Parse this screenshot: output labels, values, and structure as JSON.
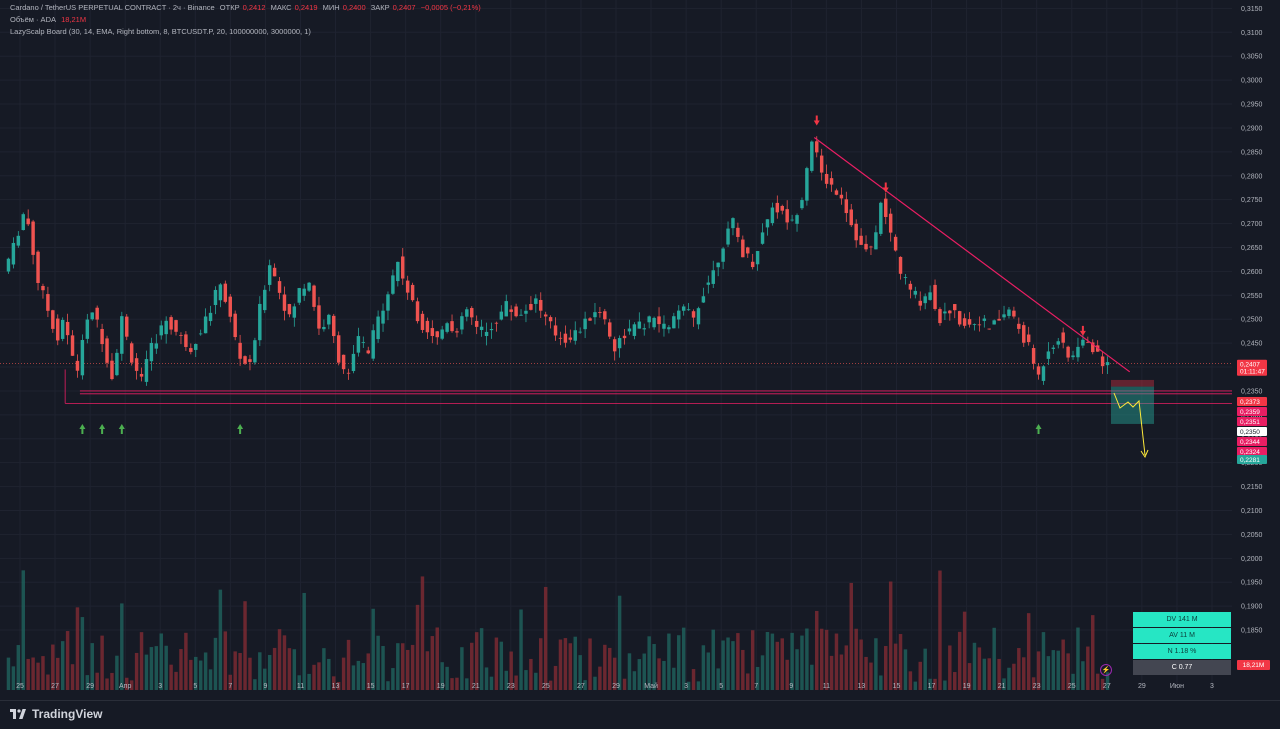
{
  "legend": {
    "line1": {
      "symbol": "Cardano / TetherUS PERPETUAL CONTRACT · 2ч · Binance",
      "open_label": "ОТКР",
      "open_value": "0,2412",
      "high_label": "МАКС",
      "high_value": "0,2419",
      "low_label": "МИН",
      "low_value": "0,2400",
      "close_label": "ЗАКР",
      "close_value": "0,2407",
      "change": "−0,0005 (−0,21%)"
    },
    "line2": {
      "label": "Объём · ADA",
      "value": "18,21M"
    },
    "line3": {
      "label": "LazyScalp Board (30, 14, EMA, Right bottom, 8, BTCUSDT.P, 20, 100000000, 3000000, 1)"
    }
  },
  "price_tags": {
    "current_price": "0,2407",
    "countdown": "01:11:47",
    "levels": [
      {
        "value": "0,2373",
        "color": "#f23645"
      },
      {
        "value": "0,2359",
        "color": "#e91e63"
      },
      {
        "value": "0,2351",
        "color": "#e91e63"
      },
      {
        "value": "0,2350",
        "color": "#ffffff"
      },
      {
        "value": "0,2344",
        "color": "#e91e63"
      },
      {
        "value": "0,2324",
        "color": "#e91e63"
      },
      {
        "value": "0,2281",
        "color": "#26a69a"
      }
    ]
  },
  "stats": {
    "dv": "DV 141 M",
    "av": "AV 11 M",
    "n": "N 1.18 %",
    "c": "C  0.77"
  },
  "volume_badge": "18,21M",
  "footer": {
    "brand": "TradingView"
  },
  "colors": {
    "up": "#26a69a",
    "down": "#ef5350",
    "trend": "#e91e63",
    "support": "#e91e63",
    "accent_green": "#4caf50",
    "accent_red": "#f23645"
  },
  "chart_data": {
    "type": "candlestick",
    "title": "Cardano / TetherUS PERPETUAL CONTRACT · 2ч · Binance",
    "y_ticks": [
      "0,3150",
      "0,3100",
      "0,3050",
      "0,3000",
      "0,2950",
      "0,2900",
      "0,2850",
      "0,2800",
      "0,2750",
      "0,2700",
      "0,2650",
      "0,2600",
      "0,2550",
      "0,2500",
      "0,2450",
      "0,2400",
      "0,2350",
      "0,2300",
      "0,2250",
      "0,2200",
      "0,2150",
      "0,2100",
      "0,2050",
      "0,2000",
      "0,1950",
      "0,1900",
      "0,1850"
    ],
    "x_ticks": [
      "25",
      "27",
      "29",
      "Апр",
      "3",
      "5",
      "7",
      "9",
      "11",
      "13",
      "15",
      "17",
      "19",
      "21",
      "23",
      "25",
      "27",
      "29",
      "Май",
      "3",
      "5",
      "7",
      "9",
      "11",
      "13",
      "15",
      "17",
      "19",
      "21",
      "23",
      "25",
      "27",
      "29",
      "Июн",
      "3"
    ],
    "ylim": [
      0.1825,
      0.3155
    ],
    "price_path": [
      [
        0,
        0.26
      ],
      [
        2,
        0.265
      ],
      [
        4,
        0.272
      ],
      [
        5,
        0.27
      ],
      [
        7,
        0.258
      ],
      [
        9,
        0.252
      ],
      [
        11,
        0.246
      ],
      [
        12,
        0.25
      ],
      [
        14,
        0.242
      ],
      [
        15,
        0.2395
      ],
      [
        16,
        0.246
      ],
      [
        18,
        0.252
      ],
      [
        20,
        0.246
      ],
      [
        22,
        0.238
      ],
      [
        24,
        0.25
      ],
      [
        26,
        0.242
      ],
      [
        28,
        0.237
      ],
      [
        30,
        0.244
      ],
      [
        33,
        0.25
      ],
      [
        36,
        0.246
      ],
      [
        38,
        0.244
      ],
      [
        40,
        0.248
      ],
      [
        42,
        0.252
      ],
      [
        44,
        0.258
      ],
      [
        46,
        0.25
      ],
      [
        48,
        0.242
      ],
      [
        50,
        0.24
      ],
      [
        52,
        0.252
      ],
      [
        54,
        0.262
      ],
      [
        56,
        0.256
      ],
      [
        58,
        0.25
      ],
      [
        60,
        0.256
      ],
      [
        62,
        0.258
      ],
      [
        64,
        0.248
      ],
      [
        66,
        0.25
      ],
      [
        68,
        0.242
      ],
      [
        70,
        0.238
      ],
      [
        72,
        0.246
      ],
      [
        74,
        0.243
      ],
      [
        76,
        0.25
      ],
      [
        78,
        0.256
      ],
      [
        80,
        0.262
      ],
      [
        82,
        0.256
      ],
      [
        84,
        0.25
      ],
      [
        86,
        0.248
      ],
      [
        88,
        0.246
      ],
      [
        90,
        0.25
      ],
      [
        92,
        0.247
      ],
      [
        94,
        0.252
      ],
      [
        96,
        0.248
      ],
      [
        98,
        0.247
      ],
      [
        100,
        0.25
      ],
      [
        102,
        0.253
      ],
      [
        104,
        0.251
      ],
      [
        106,
        0.252
      ],
      [
        108,
        0.254
      ],
      [
        110,
        0.25
      ],
      [
        112,
        0.247
      ],
      [
        114,
        0.246
      ],
      [
        116,
        0.247
      ],
      [
        118,
        0.249
      ],
      [
        120,
        0.252
      ],
      [
        122,
        0.25
      ],
      [
        124,
        0.244
      ],
      [
        126,
        0.247
      ],
      [
        128,
        0.248
      ],
      [
        130,
        0.249
      ],
      [
        132,
        0.25
      ],
      [
        134,
        0.248
      ],
      [
        136,
        0.25
      ],
      [
        138,
        0.252
      ],
      [
        140,
        0.25
      ],
      [
        142,
        0.256
      ],
      [
        144,
        0.26
      ],
      [
        146,
        0.266
      ],
      [
        148,
        0.27
      ],
      [
        150,
        0.264
      ],
      [
        152,
        0.262
      ],
      [
        154,
        0.268
      ],
      [
        156,
        0.274
      ],
      [
        158,
        0.272
      ],
      [
        160,
        0.27
      ],
      [
        162,
        0.276
      ],
      [
        164,
        0.288
      ],
      [
        166,
        0.28
      ],
      [
        168,
        0.278
      ],
      [
        170,
        0.276
      ],
      [
        172,
        0.27
      ],
      [
        174,
        0.265
      ],
      [
        176,
        0.264
      ],
      [
        178,
        0.274
      ],
      [
        180,
        0.268
      ],
      [
        182,
        0.26
      ],
      [
        184,
        0.256
      ],
      [
        186,
        0.254
      ],
      [
        188,
        0.256
      ],
      [
        190,
        0.25
      ],
      [
        192,
        0.252
      ],
      [
        194,
        0.25
      ],
      [
        196,
        0.249
      ],
      [
        198,
        0.25
      ],
      [
        200,
        0.248
      ],
      [
        202,
        0.25
      ],
      [
        204,
        0.252
      ],
      [
        206,
        0.248
      ],
      [
        208,
        0.244
      ],
      [
        210,
        0.238
      ],
      [
        212,
        0.244
      ],
      [
        214,
        0.246
      ],
      [
        216,
        0.242
      ],
      [
        218,
        0.244
      ],
      [
        220,
        0.246
      ],
      [
        222,
        0.242
      ],
      [
        224,
        0.2407
      ]
    ],
    "annotations": {
      "support_levels": [
        0.235,
        0.2344,
        0.2324
      ],
      "trendline": [
        [
          164,
          0.288
        ],
        [
          228,
          0.239
        ]
      ],
      "up_arrows": [
        15,
        19,
        23,
        47,
        209
      ],
      "down_arrows": [
        164,
        178,
        218
      ]
    },
    "volume_label": "Объём · ADA",
    "volume_last": "18,21M"
  }
}
